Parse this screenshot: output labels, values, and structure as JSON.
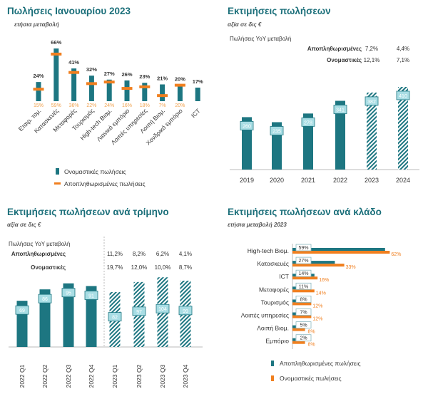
{
  "colors": {
    "title": "#1b6f7a",
    "teal": "#1d7681",
    "teal_light": "#a8dde4",
    "orange": "#f07f1f",
    "orange_label": "#f0a04b",
    "grey_line": "#bbbbbb",
    "text": "#333333"
  },
  "panel1": {
    "title": "Πωλήσεις Ιανουαρίου 2023",
    "subtitle": "ετήσια μεταβολή"
  },
  "panel2": {
    "title": "Εκτιμήσεις πωλήσεων",
    "subtitle": "αξία σε δις €",
    "yoy_header": "Πωλήσεις YoY μεταβολή"
  },
  "panel3": {
    "title": "Εκτιμήσεις πωλήσεων ανά τρίμηνο",
    "subtitle": "αξία σε δις €",
    "yoy_header": "Πωλήσεις YoY μεταβολή"
  },
  "panel4": {
    "title": "Εκτιμήσεις πωλήσεων ανά κλάδο",
    "subtitle": "ετήσια μεταβολή 2023"
  },
  "chart_data": [
    {
      "type": "bar",
      "categories": [
        "Εταιρ. τομ.",
        "Κατασκευές",
        "Μεταφορές",
        "Τουρισμός",
        "High-tech Βιομ.",
        "Λιανικό εμπόριο",
        "Λοιπές υπηρεσίες",
        "Λοιπή Βιομ.",
        "Χονδρικό εμπόριο",
        "ICT"
      ],
      "series": [
        {
          "name": "Ονομαστικές πωλήσεις",
          "values": [
            24,
            66,
            41,
            32,
            27,
            26,
            23,
            21,
            20,
            17
          ],
          "labels": [
            "24%",
            "66%",
            "41%",
            "32%",
            "27%",
            "26%",
            "23%",
            "21%",
            "20%",
            "17%"
          ]
        },
        {
          "name": "Αποπληθωρισμένες πωλήσεις",
          "values": [
            15,
            59,
            36,
            22,
            24,
            16,
            18,
            7,
            20,
            null
          ],
          "labels": [
            "15%",
            "59%",
            "36%",
            "22%",
            "24%",
            "16%",
            "18%",
            "7%",
            "20%",
            ""
          ]
        }
      ]
    },
    {
      "type": "bar",
      "categories": [
        "2019",
        "2020",
        "2021",
        "2022",
        "2023",
        "2024"
      ],
      "values": [
        260,
        235,
        278,
        341,
        382,
        410
      ],
      "estimated": [
        false,
        false,
        false,
        false,
        true,
        true
      ],
      "yoy_rows": [
        {
          "label": "Αποπληθωρισμένες",
          "values": [
            "7,2%",
            "4,4%"
          ]
        },
        {
          "label": "Ονομαστικές",
          "values": [
            "12,1%",
            "7,1%"
          ]
        }
      ]
    },
    {
      "type": "bar",
      "categories": [
        "2022 Q1",
        "2022 Q2",
        "2022 Q3",
        "2022 Q4",
        "2023 Q1",
        "2023 Q2",
        "2023 Q3",
        "2023 Q4"
      ],
      "values": [
        69,
        86,
        95,
        91,
        82,
        97,
        104,
        99
      ],
      "estimated": [
        false,
        false,
        false,
        false,
        true,
        true,
        true,
        true
      ],
      "yoy_rows": [
        {
          "label": "Αποπληθωρισμένες",
          "values": [
            "11,2%",
            "8,2%",
            "6,2%",
            "4,1%"
          ]
        },
        {
          "label": "Ονομαστικές",
          "values": [
            "19,7%",
            "12,0%",
            "10,0%",
            "8,7%"
          ]
        }
      ]
    },
    {
      "type": "bar",
      "orientation": "horizontal",
      "categories": [
        "High-tech Βιομ.",
        "Κατασκευές",
        "ICT",
        "Μεταφορές",
        "Τουρισμός",
        "Λοιπές υπηρεσίες",
        "Λοιπή Βιομ.",
        "Εμπόριο"
      ],
      "series": [
        {
          "name": "Αποπληθωρισμένες πωλήσεις",
          "values": [
            59,
            27,
            14,
            11,
            8,
            7,
            5,
            2
          ],
          "labels": [
            "59%",
            "27%",
            "14%",
            "11%",
            "8%",
            "7%",
            "5%",
            "2%"
          ]
        },
        {
          "name": "Ονομαστικές πωλήσεις",
          "values": [
            62,
            33,
            16,
            14,
            12,
            12,
            8,
            8
          ],
          "labels": [
            "62%",
            "33%",
            "16%",
            "14%",
            "12%",
            "12%",
            "8%",
            "8%"
          ]
        }
      ]
    }
  ]
}
